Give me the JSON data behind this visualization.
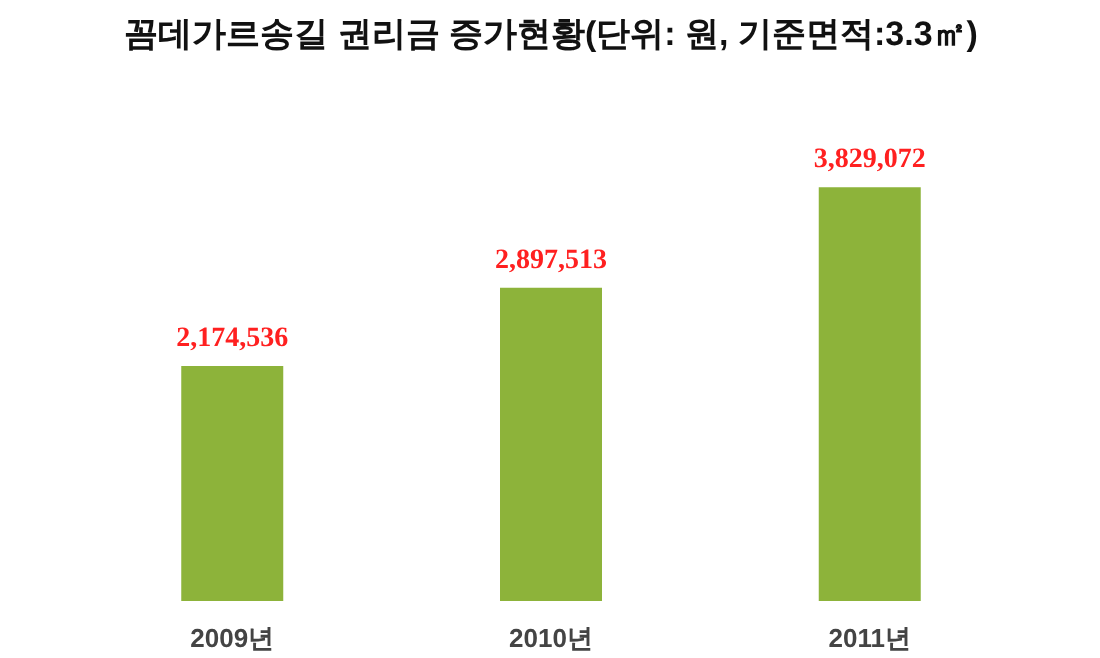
{
  "chart_data": {
    "type": "bar",
    "title": "꼼데가르송길 권리금 증가현황(단위: 원, 기준면적:3.3㎡)",
    "categories": [
      "2009년",
      "2010년",
      "2011년"
    ],
    "values": [
      2174536,
      2897513,
      3829072
    ],
    "color": "#8db33a",
    "data_labels": true,
    "value_labels": [
      "2,174,536",
      "2,897,513",
      "3,829,072"
    ],
    "grid": false
  }
}
